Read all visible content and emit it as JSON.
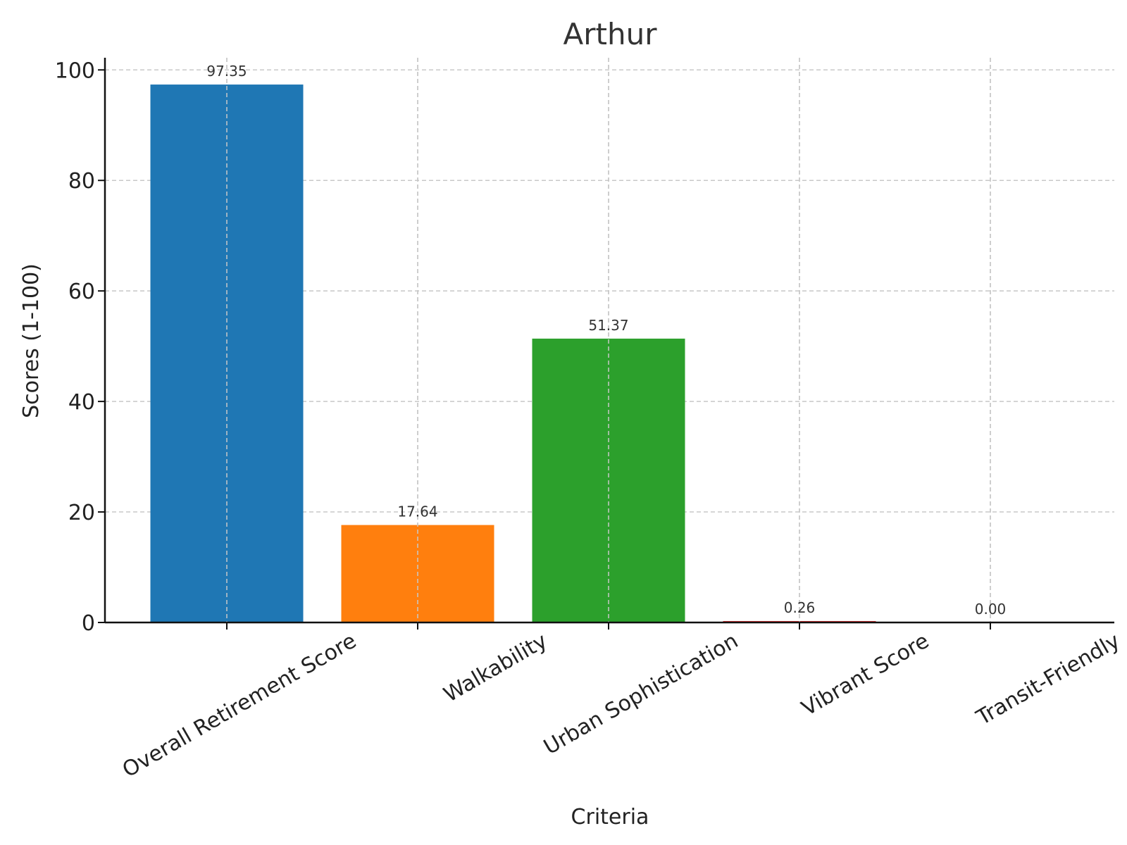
{
  "chart_data": {
    "type": "bar",
    "title": "Arthur",
    "xlabel": "Criteria",
    "ylabel": "Scores (1-100)",
    "categories": [
      "Overall Retirement Score",
      "Walkability",
      "Urban Sophistication",
      "Vibrant Score",
      "Transit-Friendly"
    ],
    "values": [
      97.35,
      17.64,
      51.37,
      0.26,
      0.0
    ],
    "value_labels": [
      "97.35",
      "17.64",
      "51.37",
      "0.26",
      "0.00"
    ],
    "colors": [
      "#1f77b4",
      "#ff7f0e",
      "#2ca02c",
      "#d62728",
      "#9467bd"
    ],
    "ylim": [
      0,
      102.2
    ],
    "yticks": [
      0,
      20,
      40,
      60,
      80,
      100
    ],
    "ytick_labels": [
      "0",
      "20",
      "40",
      "60",
      "80",
      "100"
    ],
    "grid": true,
    "legend": "none"
  }
}
